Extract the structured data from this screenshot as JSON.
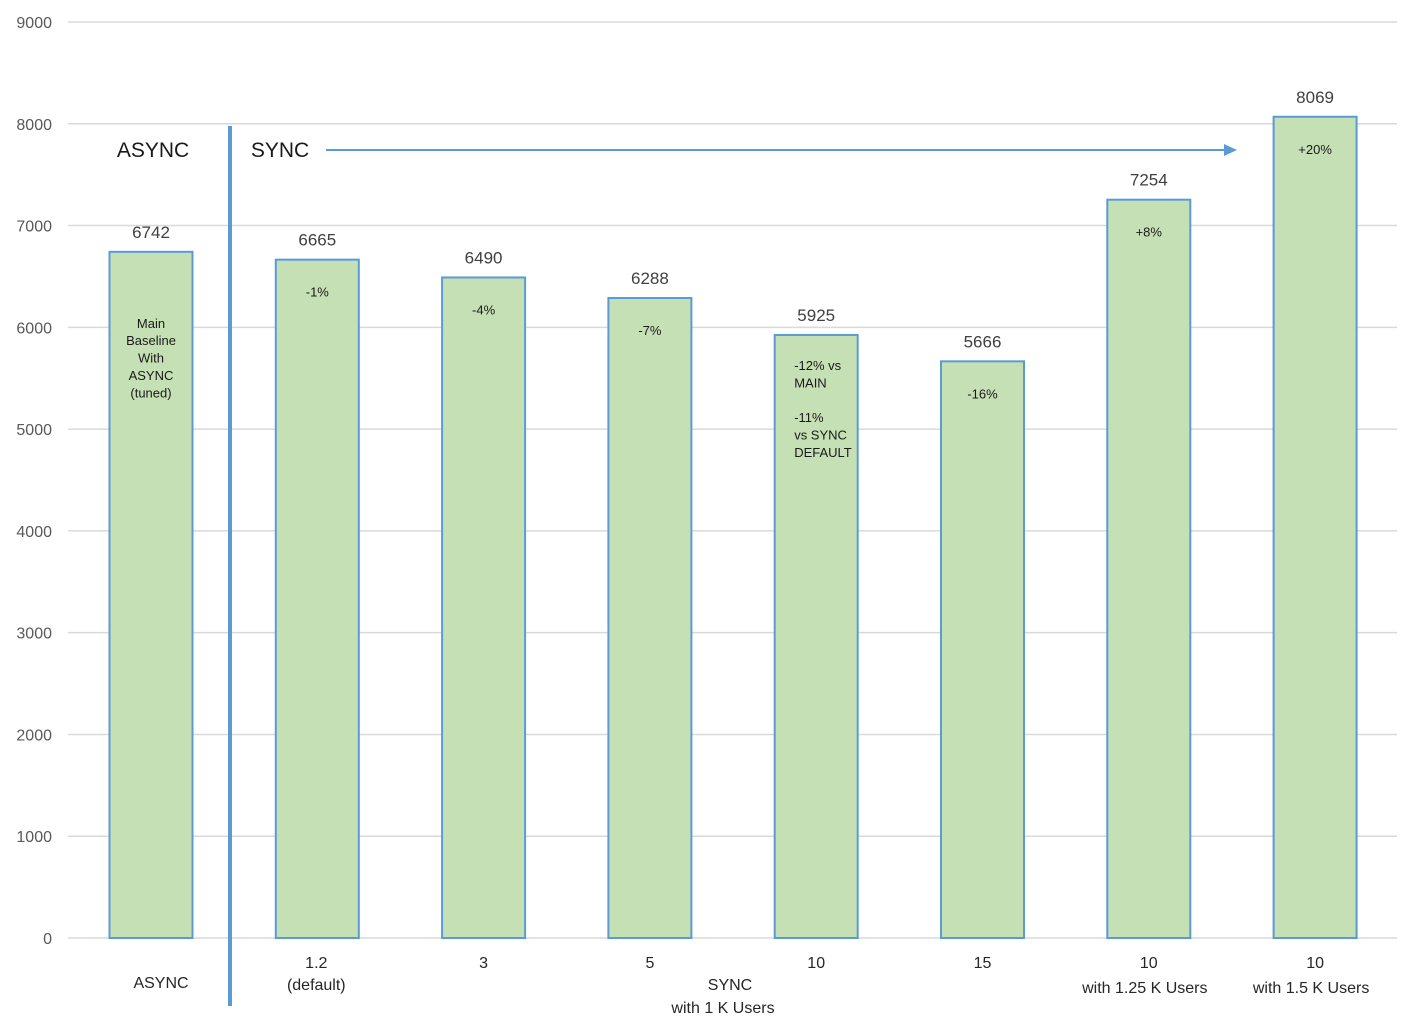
{
  "chart_data": {
    "type": "bar",
    "title": "",
    "xlabel": "",
    "ylabel": "",
    "ylim": [
      0,
      9000
    ],
    "yticks": [
      0,
      1000,
      2000,
      3000,
      4000,
      5000,
      6000,
      7000,
      8000,
      9000
    ],
    "grid": true,
    "categories": [
      "ASYNC",
      "1.2 (default)",
      "3",
      "5",
      "10",
      "15",
      "10 with 1.25 K Users",
      "10 with 1.5 K Users"
    ],
    "values": [
      6742,
      6665,
      6490,
      6288,
      5925,
      5666,
      7254,
      8069
    ],
    "category_labels": [
      [
        "ASYNC"
      ],
      [
        "1.2",
        "(default)"
      ],
      [
        "3"
      ],
      [
        "5"
      ],
      [
        "10"
      ],
      [
        "15"
      ],
      [
        "10",
        "with 1.25 K Users"
      ],
      [
        "10",
        "with 1.5 K Users"
      ]
    ],
    "bar_annotations": [
      [
        "Main",
        "Baseline",
        "With",
        "ASYNC",
        "(tuned)"
      ],
      [
        "-1%"
      ],
      [
        "-4%"
      ],
      [
        "-7%"
      ],
      [
        "-12% vs",
        "MAIN",
        "",
        "-11%",
        "vs SYNC",
        "DEFAULT"
      ],
      [
        "-16%"
      ],
      [
        "+8%"
      ],
      [
        "+20%"
      ]
    ],
    "group_label": [
      "SYNC",
      "with 1 K Users"
    ],
    "section_labels": {
      "async": "ASYNC",
      "sync": "SYNC"
    },
    "colors": {
      "bar_fill": "#c5e0b4",
      "bar_stroke": "#5b9bd5",
      "divider": "#5b9bd5",
      "arrow": "#5b9bd5",
      "grid": "#d9d9d9"
    }
  }
}
